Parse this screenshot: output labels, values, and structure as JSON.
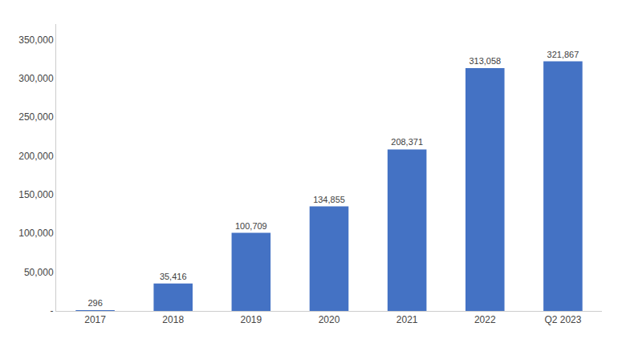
{
  "chart_data": {
    "type": "bar",
    "categories": [
      "2017",
      "2018",
      "2019",
      "2020",
      "2021",
      "2022",
      "Q2 2023"
    ],
    "values": [
      296,
      35416,
      100709,
      134855,
      208371,
      313058,
      321867
    ],
    "value_labels": [
      "296",
      "35,416",
      "100,709",
      "134,855",
      "208,371",
      "313,058",
      "321,867"
    ],
    "data_labels": true,
    "color": "#4472c4",
    "ylim": [
      0,
      370000
    ],
    "yticks": [
      {
        "value": 0,
        "label": "-"
      },
      {
        "value": 50000,
        "label": "50,000"
      },
      {
        "value": 100000,
        "label": "100,000"
      },
      {
        "value": 150000,
        "label": "150,000"
      },
      {
        "value": 200000,
        "label": "200,000"
      },
      {
        "value": 250000,
        "label": "250,000"
      },
      {
        "value": 300000,
        "label": "300,000"
      },
      {
        "value": 350000,
        "label": "350,000"
      }
    ],
    "grid": false
  }
}
